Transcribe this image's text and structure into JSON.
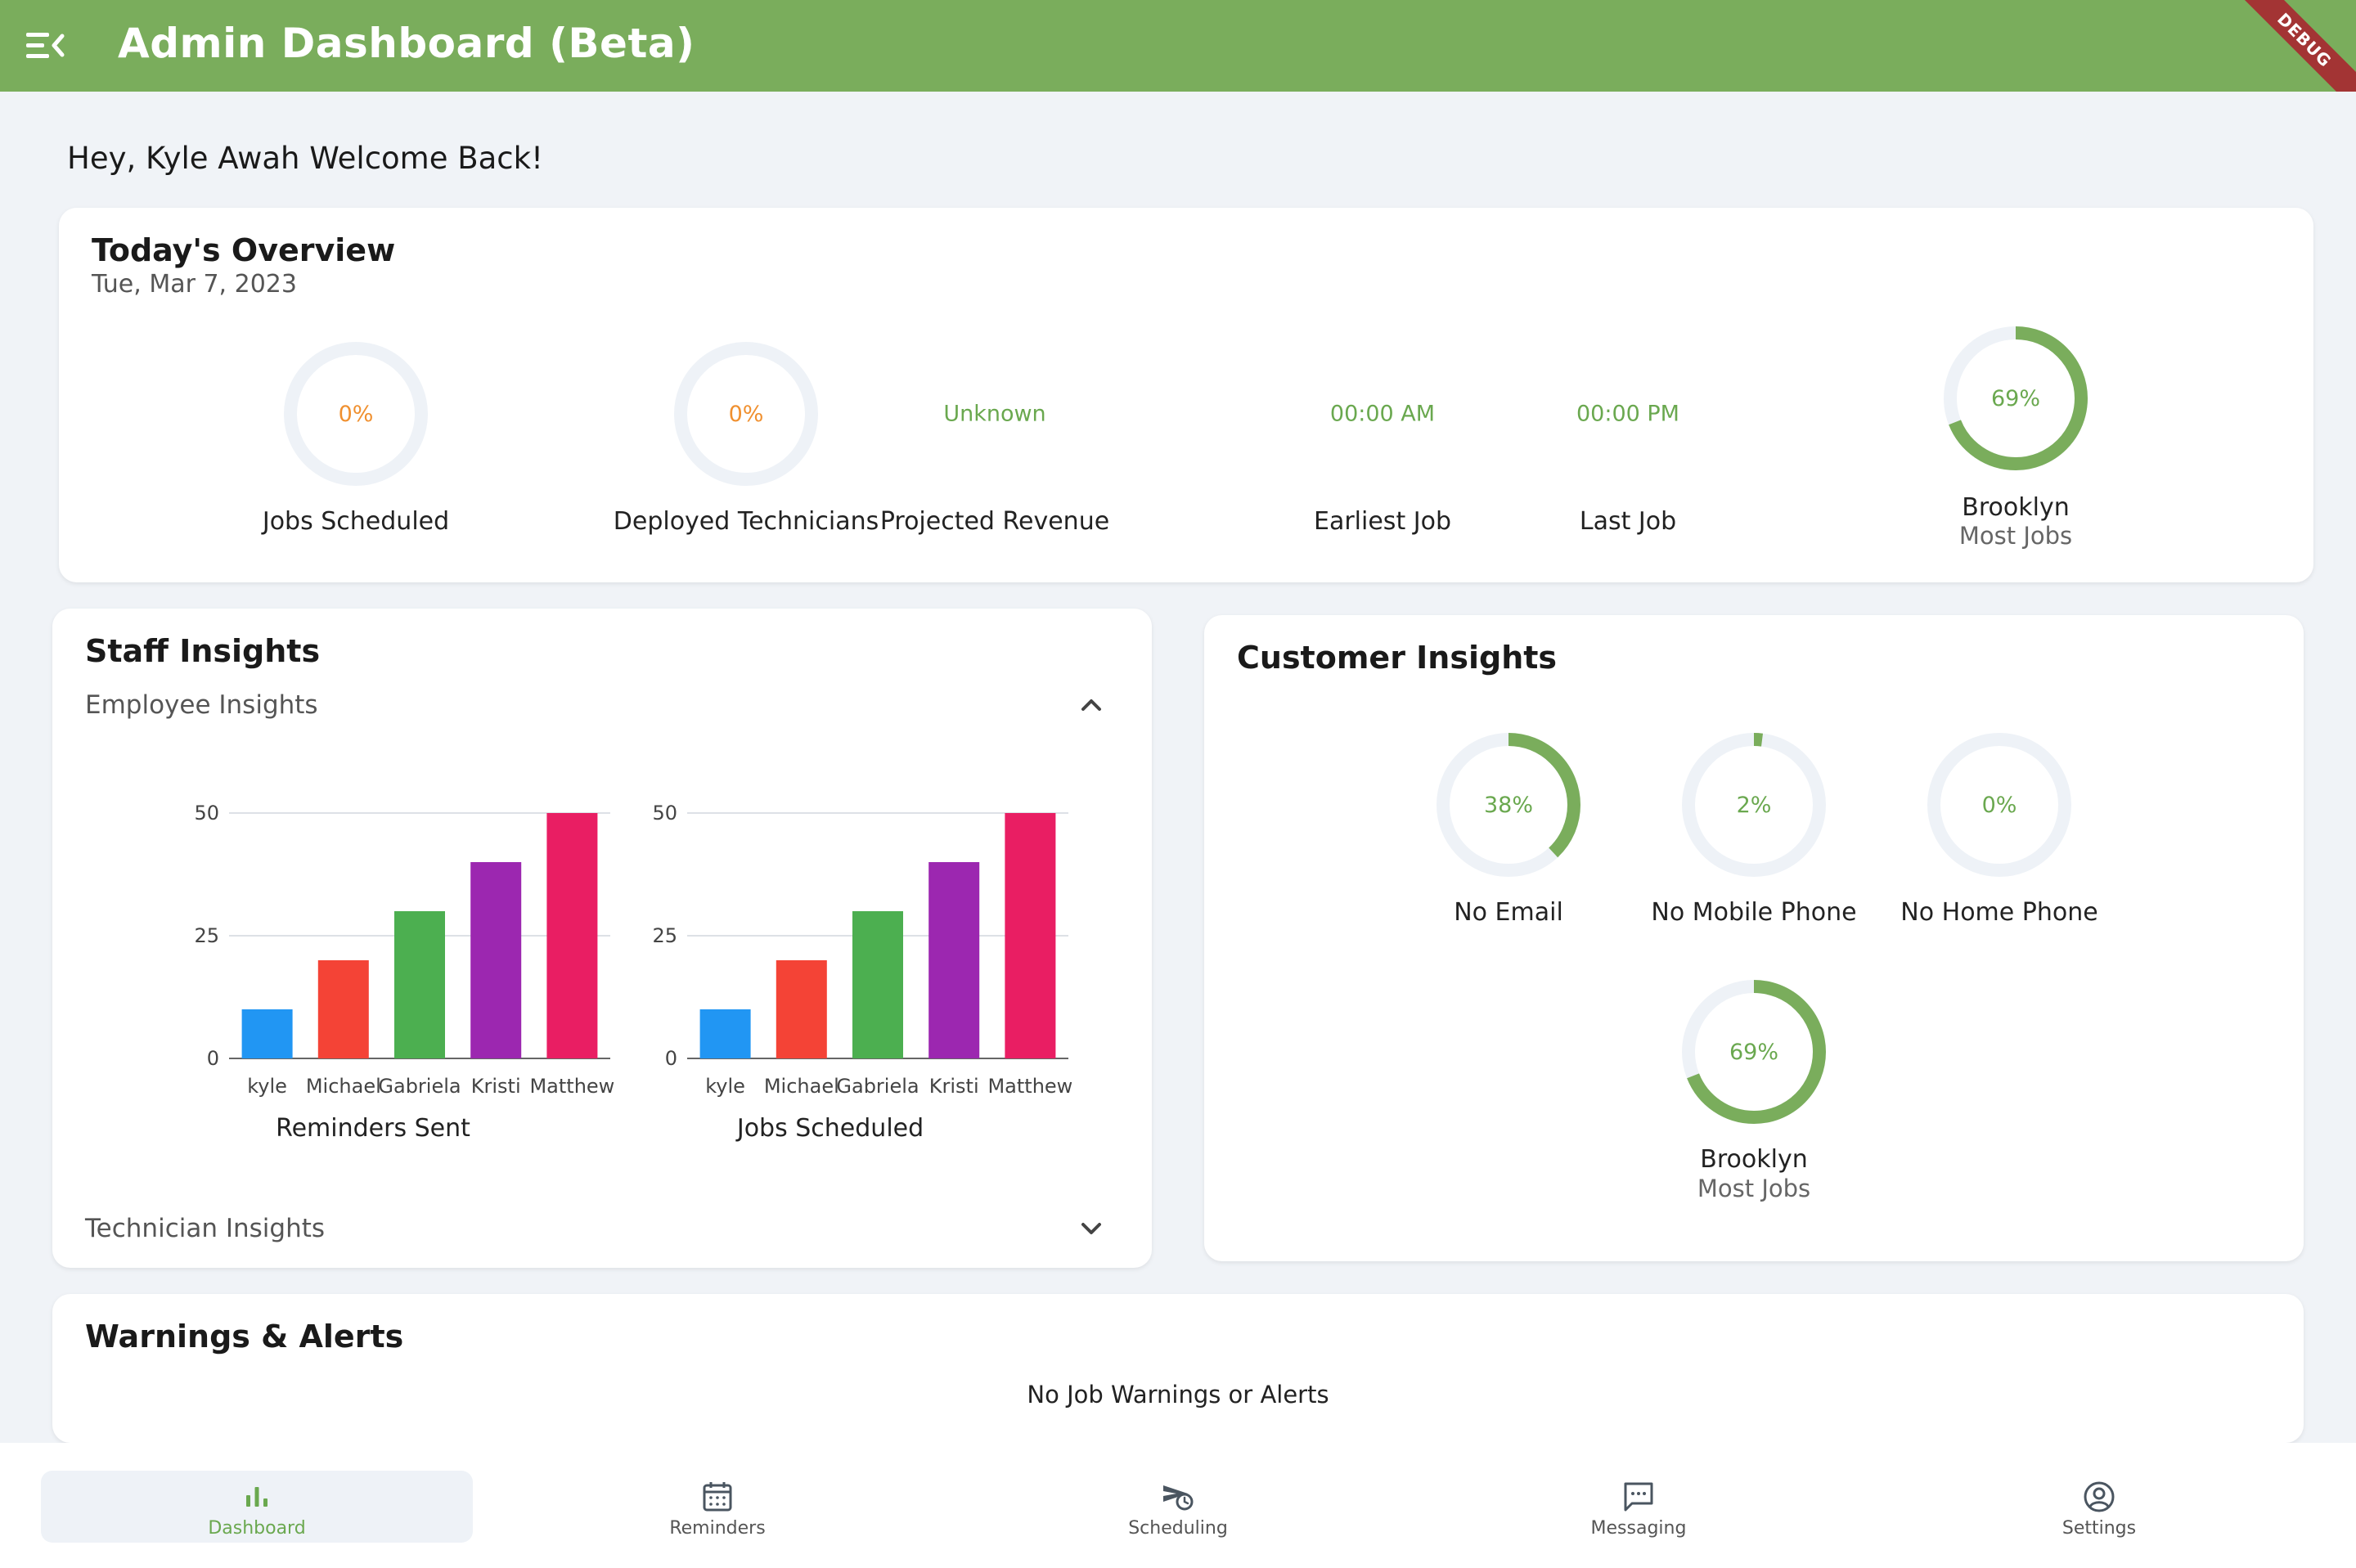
{
  "app": {
    "title": "Admin Dashboard (Beta)",
    "debug_label": "DEBUG"
  },
  "greeting": "Hey, Kyle Awah Welcome Back!",
  "overview": {
    "title": "Today's Overview",
    "date": "Tue, Mar 7, 2023",
    "jobs_scheduled": {
      "value": "0%",
      "fraction": 0,
      "label": "Jobs Scheduled"
    },
    "deployed_technicians": {
      "value": "0%",
      "fraction": 0,
      "label": "Deployed Technicians"
    },
    "projected_revenue": {
      "value": "Unknown",
      "label": "Projected Revenue"
    },
    "earliest_job": {
      "value": "00:00 AM",
      "label": "Earliest Job"
    },
    "last_job": {
      "value": "00:00 PM",
      "label": "Last Job"
    },
    "most_jobs": {
      "value": "69%",
      "fraction": 0.69,
      "label": "Brooklyn",
      "sublabel": "Most Jobs"
    }
  },
  "staff": {
    "title": "Staff Insights",
    "employee_section": "Employee Insights",
    "technician_section": "Technician Insights"
  },
  "customer": {
    "title": "Customer Insights",
    "no_email": {
      "value": "38%",
      "fraction": 0.38,
      "label": "No Email"
    },
    "no_mobile": {
      "value": "2%",
      "fraction": 0.02,
      "label": "No Mobile Phone"
    },
    "no_home": {
      "value": "0%",
      "fraction": 0,
      "label": "No Home Phone"
    },
    "most_jobs": {
      "value": "69%",
      "fraction": 0.69,
      "label": "Brooklyn",
      "sublabel": "Most Jobs"
    }
  },
  "warnings": {
    "title": "Warnings & Alerts",
    "message": "No Job Warnings or Alerts"
  },
  "nav": {
    "dashboard": "Dashboard",
    "reminders": "Reminders",
    "scheduling": "Scheduling",
    "messaging": "Messaging",
    "settings": "Settings"
  },
  "colors": {
    "accent": "#7aad5c",
    "ring_track": "#eef2f7",
    "ring_fill": "#7aad5c",
    "orange": "#f0902f"
  },
  "chart_data": [
    {
      "type": "bar",
      "title": "",
      "xlabel": "Reminders Sent",
      "categories": [
        "kyle",
        "Michael",
        "Gabriela",
        "Kristi",
        "Matthew"
      ],
      "values": [
        10,
        20,
        30,
        40,
        50
      ],
      "colors": [
        "#2196f3",
        "#f44336",
        "#4caf50",
        "#9c27b0",
        "#e91e63"
      ],
      "yticks": [
        0,
        25,
        50
      ],
      "ylim": [
        0,
        50
      ]
    },
    {
      "type": "bar",
      "title": "",
      "xlabel": "Jobs Scheduled",
      "categories": [
        "kyle",
        "Michael",
        "Gabriela",
        "Kristi",
        "Matthew"
      ],
      "values": [
        10,
        20,
        30,
        40,
        50
      ],
      "colors": [
        "#2196f3",
        "#f44336",
        "#4caf50",
        "#9c27b0",
        "#e91e63"
      ],
      "yticks": [
        0,
        25,
        50
      ],
      "ylim": [
        0,
        50
      ]
    }
  ]
}
